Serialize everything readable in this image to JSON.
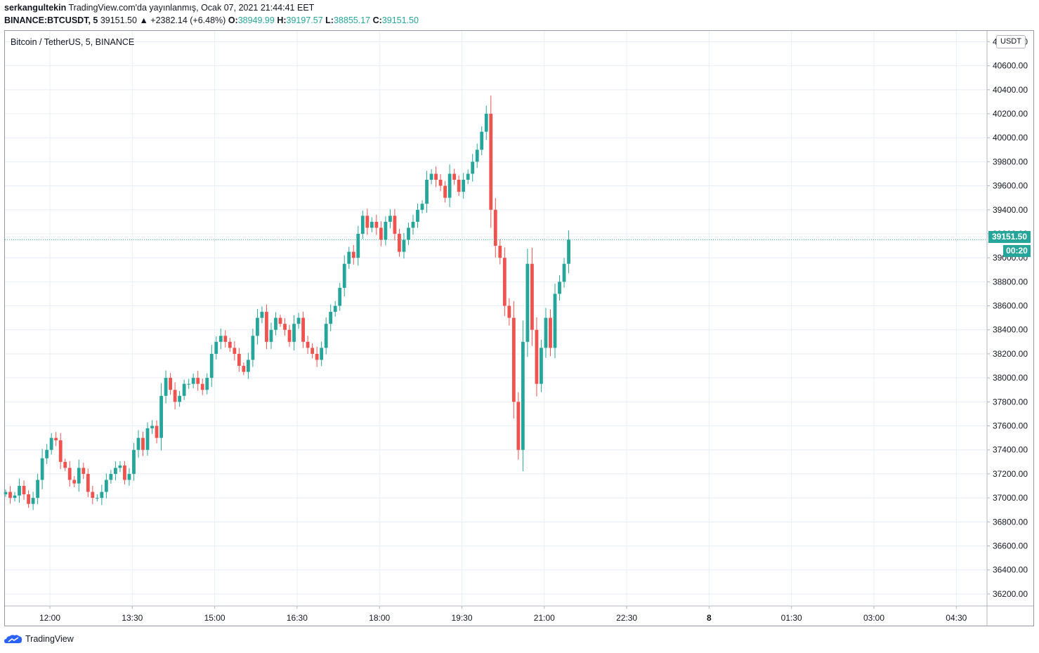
{
  "header": {
    "user": "serkangultekin",
    "published": "TradingView.com'da yayınlanmış, Ocak 07, 2021 21:44:41 EET",
    "symbol": "BINANCE:BTCUSDT, 5",
    "last": "39151.50",
    "change": "▲ +2382.14 (+6.48%)",
    "o_label": "O:",
    "o": "38949.99",
    "h_label": "H:",
    "h": "39197.57",
    "l_label": "L:",
    "l": "38855.17",
    "c_label": "C:",
    "c": "39151.50"
  },
  "legend": "Bitcoin / TetherUS, 5, BINANCE",
  "currency": "USDT",
  "price_tag": "39151.50",
  "countdown": "00:20",
  "brand": "TradingView",
  "colors": {
    "up": "#26a69a",
    "down": "#ef5350",
    "grid": "#e8eef6",
    "last_line": "#26a69a"
  },
  "chart_data": {
    "type": "candlestick",
    "y_ticks": [
      36200,
      36400,
      36600,
      36800,
      37000,
      37200,
      37400,
      37600,
      37800,
      38000,
      38200,
      38400,
      38600,
      38800,
      39000,
      39200,
      39400,
      39600,
      39800,
      40000,
      40200,
      40400,
      40600,
      40800
    ],
    "y_tick_labels": [
      "36200.00",
      "36400.00",
      "36600.00",
      "36800.00",
      "37000.00",
      "37200.00",
      "37400.00",
      "37600.00",
      "37800.00",
      "38000.00",
      "38200.00",
      "38400.00",
      "38600.00",
      "38800.00",
      "39000.00",
      "39200.00",
      "39400.00",
      "39600.00",
      "39800.00",
      "40000.00",
      "40200.00",
      "40400.00",
      "40600.00",
      "40800.00"
    ],
    "ylim": [
      36100,
      40890
    ],
    "x_ticks": [
      "12:00",
      "13:30",
      "15:00",
      "16:30",
      "18:00",
      "19:30",
      "21:00",
      "22:30",
      "8",
      "01:30",
      "03:00",
      "04:30"
    ],
    "candle_interval_minutes": 5,
    "last_close": 39151.5,
    "close_series": [
      37050,
      37000,
      37020,
      37100,
      37030,
      36950,
      37000,
      37150,
      37330,
      37400,
      37500,
      37480,
      37300,
      37250,
      37150,
      37120,
      37250,
      37200,
      37050,
      37000,
      37000,
      37050,
      37150,
      37200,
      37250,
      37270,
      37150,
      37200,
      37400,
      37500,
      37400,
      37580,
      37600,
      37500,
      37850,
      38000,
      37900,
      37800,
      37850,
      37950,
      37950,
      38000,
      37950,
      37900,
      38000,
      38200,
      38300,
      38350,
      38300,
      38250,
      38200,
      38100,
      38050,
      38150,
      38350,
      38500,
      38550,
      38300,
      38400,
      38500,
      38450,
      38400,
      38300,
      38450,
      38500,
      38300,
      38250,
      38200,
      38150,
      38250,
      38450,
      38550,
      38600,
      38750,
      38950,
      39050,
      39000,
      39200,
      39350,
      39250,
      39300,
      39250,
      39150,
      39300,
      39350,
      39200,
      39050,
      39150,
      39250,
      39300,
      39400,
      39450,
      39650,
      39700,
      39650,
      39600,
      39500,
      39700,
      39650,
      39550,
      39650,
      39700,
      39800,
      39900,
      40050,
      40200,
      39400,
      39100,
      39000,
      38600,
      38500,
      37800,
      37400,
      38300,
      38950,
      38400,
      37950,
      38250,
      38500,
      38250,
      38700,
      38800,
      38950,
      39150
    ]
  }
}
